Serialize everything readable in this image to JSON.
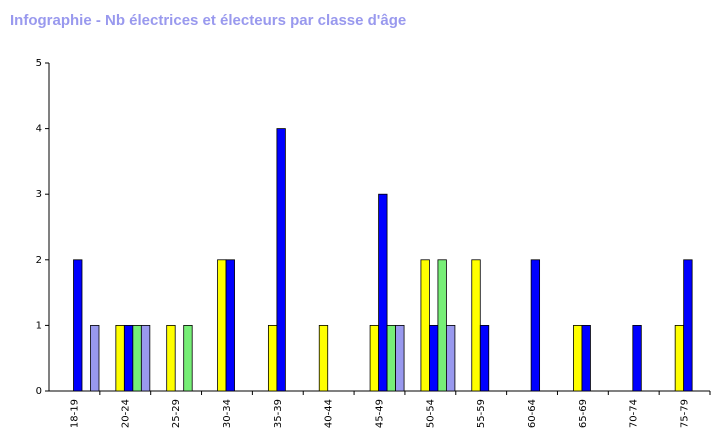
{
  "chart_data": {
    "type": "bar",
    "title": "Infographie - Nb électrices et électeurs par classe d'âge",
    "xlabel": "",
    "ylabel": "",
    "ylim": [
      0,
      5
    ],
    "yticks": [
      "0",
      "1",
      "2",
      "3",
      "4",
      "5"
    ],
    "categories": [
      "18-19",
      "20-24",
      "25-29",
      "30-34",
      "35-39",
      "40-44",
      "45-49",
      "50-54",
      "55-59",
      "60-64",
      "65-69",
      "70-74",
      "75-79"
    ],
    "series": [
      {
        "color": "#ffff00",
        "values": [
          0,
          1,
          1,
          2,
          1,
          1,
          1,
          2,
          2,
          0,
          1,
          0,
          1
        ]
      },
      {
        "color": "#0000ff",
        "values": [
          2,
          1,
          0,
          2,
          4,
          0,
          3,
          1,
          1,
          2,
          1,
          1,
          2
        ]
      },
      {
        "color": "#77ee77",
        "values": [
          0,
          1,
          1,
          0,
          0,
          0,
          1,
          2,
          0,
          0,
          0,
          0,
          0
        ]
      },
      {
        "color": "#9999ee",
        "values": [
          1,
          1,
          0,
          0,
          0,
          0,
          1,
          1,
          0,
          0,
          0,
          0,
          0
        ]
      }
    ],
    "grid": false,
    "legend": "none"
  }
}
